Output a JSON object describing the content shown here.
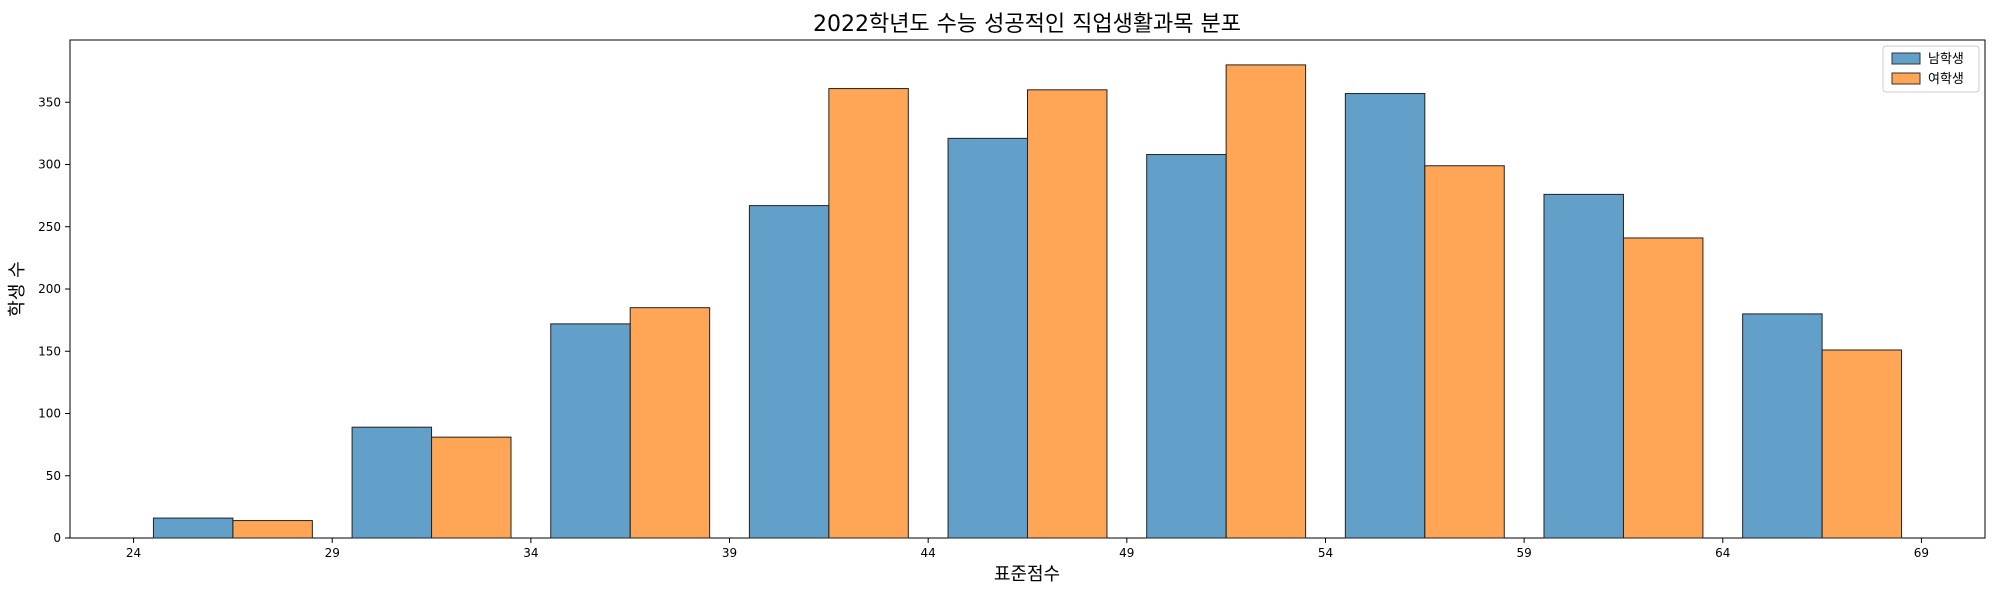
{
  "chart_data": {
    "type": "bar",
    "title": "2022학년도 수능 성공적인 직업생활과목 분포",
    "xlabel": "표준점수",
    "ylabel": "학생 수",
    "x_ticks": [
      24,
      29,
      34,
      39,
      44,
      49,
      54,
      59,
      64,
      69
    ],
    "y_ticks": [
      0,
      50,
      100,
      150,
      200,
      250,
      300,
      350
    ],
    "xlim": [
      22.4,
      70.6
    ],
    "ylim": [
      0,
      400
    ],
    "bin_start": 24.5,
    "bin_width": 5,
    "bar_width": 2,
    "legend_position": "top-right",
    "series": [
      {
        "name": "남학생",
        "color": "#1f77b4",
        "values": [
          16,
          89,
          172,
          267,
          321,
          308,
          357,
          276,
          180
        ]
      },
      {
        "name": "여학생",
        "color": "#ff7f0e",
        "values": [
          14,
          81,
          185,
          361,
          360,
          380,
          299,
          241,
          151
        ]
      }
    ]
  }
}
